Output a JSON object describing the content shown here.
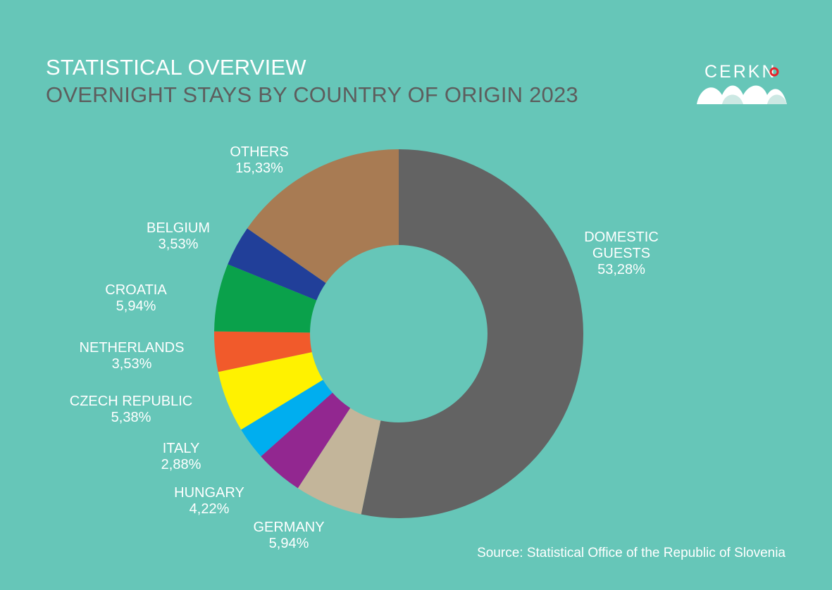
{
  "header": {
    "title": "STATISTICAL OVERVIEW",
    "subtitle": "OVERNIGHT STAYS BY COUNTRY OF ORIGIN 2023"
  },
  "logo": {
    "text": "CERKN"
  },
  "source": "Source: Statistical Office of the Republic of Slovenia",
  "colors": {
    "background": "#66c6b8",
    "text": "#ffffff",
    "subtitle": "#5d5d5d",
    "logo_accent": "#e8232a"
  },
  "chart_data": {
    "type": "pie",
    "variant": "donut",
    "title": "OVERNIGHT STAYS BY COUNTRY OF ORIGIN 2023",
    "slices": [
      {
        "label": "DOMESTIC GUESTS",
        "label_lines": [
          "DOMESTIC",
          "GUESTS"
        ],
        "value": 53.28,
        "display": "53,28%",
        "color": "#636363"
      },
      {
        "label": "GERMANY",
        "label_lines": [
          "GERMANY"
        ],
        "value": 5.94,
        "display": "5,94%",
        "color": "#c3b59a"
      },
      {
        "label": "HUNGARY",
        "label_lines": [
          "HUNGARY"
        ],
        "value": 4.22,
        "display": "4,22%",
        "color": "#922790"
      },
      {
        "label": "ITALY",
        "label_lines": [
          "ITALY"
        ],
        "value": 2.88,
        "display": "2,88%",
        "color": "#00aeef"
      },
      {
        "label": "CZECH REPUBLIC",
        "label_lines": [
          "CZECH REPUBLIC"
        ],
        "value": 5.38,
        "display": "5,38%",
        "color": "#fff200"
      },
      {
        "label": "NETHERLANDS",
        "label_lines": [
          "NETHERLANDS"
        ],
        "value": 3.53,
        "display": "3,53%",
        "color": "#f15a2b"
      },
      {
        "label": "CROATIA",
        "label_lines": [
          "CROATIA"
        ],
        "value": 5.94,
        "display": "5,94%",
        "color": "#0aa14b"
      },
      {
        "label": "BELGIUM",
        "label_lines": [
          "BELGIUM"
        ],
        "value": 3.53,
        "display": "3,53%",
        "color": "#213f99"
      },
      {
        "label": "OTHERS",
        "label_lines": [
          "OTHERS"
        ],
        "value": 15.33,
        "display": "15,33%",
        "color": "#a87b53"
      }
    ]
  }
}
